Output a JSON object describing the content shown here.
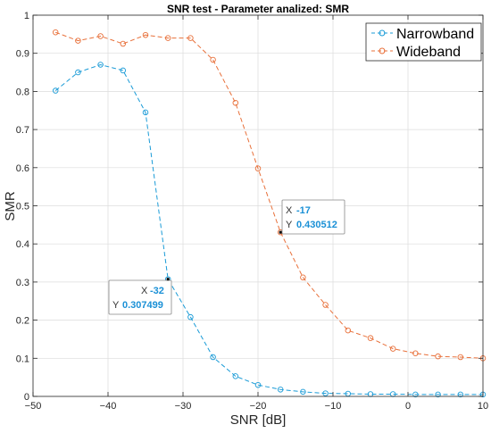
{
  "chart_data": {
    "type": "line",
    "title": "SNR test - Parameter analized: SMR",
    "xlabel": "SNR [dB]",
    "ylabel": "SMR",
    "xlim": [
      -50,
      10
    ],
    "ylim": [
      0,
      1
    ],
    "xticks": [
      -50,
      -40,
      -30,
      -20,
      -10,
      0,
      10
    ],
    "yticks": [
      0,
      0.1,
      0.2,
      0.3,
      0.4,
      0.5,
      0.6,
      0.7,
      0.8,
      0.9,
      1
    ],
    "grid": true,
    "legend_position": "top-right",
    "series": [
      {
        "name": "Narrowband",
        "color": "#1a9bd7",
        "marker": "circle",
        "line_style": "dashed",
        "x": [
          -47,
          -44,
          -41,
          -38,
          -35,
          -32,
          -29,
          -26,
          -23,
          -20,
          -17,
          -14,
          -11,
          -8,
          -5,
          -2,
          1,
          4,
          7,
          10
        ],
        "y": [
          0.802,
          0.85,
          0.87,
          0.855,
          0.745,
          0.307499,
          0.208,
          0.103,
          0.053,
          0.03,
          0.018,
          0.012,
          0.008,
          0.007,
          0.006,
          0.006,
          0.005,
          0.005,
          0.005,
          0.005
        ]
      },
      {
        "name": "Wideband",
        "color": "#e8703a",
        "marker": "circle",
        "line_style": "dashed",
        "x": [
          -47,
          -44,
          -41,
          -38,
          -35,
          -32,
          -29,
          -26,
          -23,
          -20,
          -17,
          -14,
          -11,
          -8,
          -5,
          -2,
          1,
          4,
          7,
          10
        ],
        "y": [
          0.955,
          0.933,
          0.945,
          0.925,
          0.948,
          0.94,
          0.94,
          0.883,
          0.77,
          0.598,
          0.430512,
          0.312,
          0.24,
          0.173,
          0.153,
          0.125,
          0.113,
          0.105,
          0.103,
          0.1
        ]
      }
    ],
    "datatips": [
      {
        "x_label": "X",
        "x_value": "-32",
        "y_label": "Y",
        "y_value": "0.307499",
        "x": -32,
        "y": 0.307499,
        "series": 0
      },
      {
        "x_label": "X",
        "x_value": "-17",
        "y_label": "Y",
        "y_value": "0.430512",
        "x": -17,
        "y": 0.430512,
        "series": 1
      }
    ]
  }
}
